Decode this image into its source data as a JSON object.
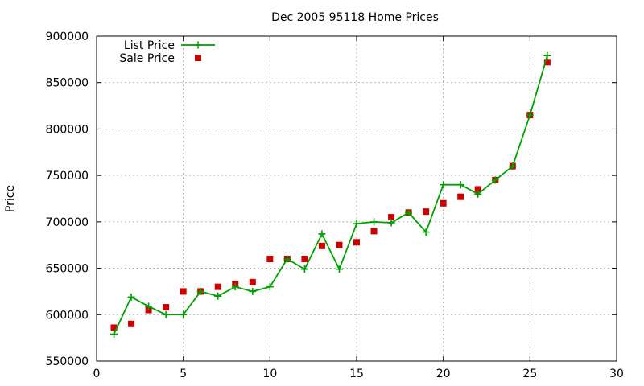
{
  "chart_data": {
    "type": "line",
    "title": "Dec 2005 95118 Home Prices",
    "xlabel": "",
    "ylabel": "Price",
    "xlim": [
      0,
      30
    ],
    "ylim": [
      550000,
      900000
    ],
    "x_ticks": [
      0,
      5,
      10,
      15,
      20,
      25,
      30
    ],
    "y_ticks": [
      550000,
      600000,
      650000,
      700000,
      750000,
      800000,
      850000,
      900000
    ],
    "grid": true,
    "legend_position": "top-left",
    "series": [
      {
        "name": "List Price",
        "style": "linespoints",
        "marker": "plus",
        "color": "#00a000",
        "x": [
          1,
          2,
          3,
          4,
          5,
          6,
          7,
          8,
          9,
          10,
          11,
          12,
          13,
          14,
          15,
          16,
          17,
          18,
          19,
          20,
          21,
          22,
          23,
          24,
          25,
          26
        ],
        "y": [
          579000,
          619000,
          609000,
          600000,
          600000,
          625000,
          620000,
          630000,
          625000,
          630000,
          660000,
          649000,
          687000,
          649000,
          698000,
          700000,
          699000,
          710000,
          689000,
          740000,
          740000,
          730000,
          745000,
          760000,
          815000,
          879000
        ]
      },
      {
        "name": "Sale Price",
        "style": "points",
        "marker": "square",
        "color": "#cc0000",
        "x": [
          1,
          2,
          3,
          4,
          5,
          6,
          7,
          8,
          9,
          10,
          11,
          12,
          13,
          14,
          15,
          16,
          17,
          18,
          19,
          20,
          21,
          22,
          23,
          24,
          25,
          26
        ],
        "y": [
          586000,
          590000,
          605000,
          608000,
          625000,
          625000,
          630000,
          633000,
          635000,
          660000,
          660000,
          660000,
          674000,
          675000,
          678000,
          690000,
          705000,
          710000,
          711000,
          720000,
          727000,
          735000,
          745000,
          760000,
          815000,
          872000
        ]
      }
    ]
  }
}
